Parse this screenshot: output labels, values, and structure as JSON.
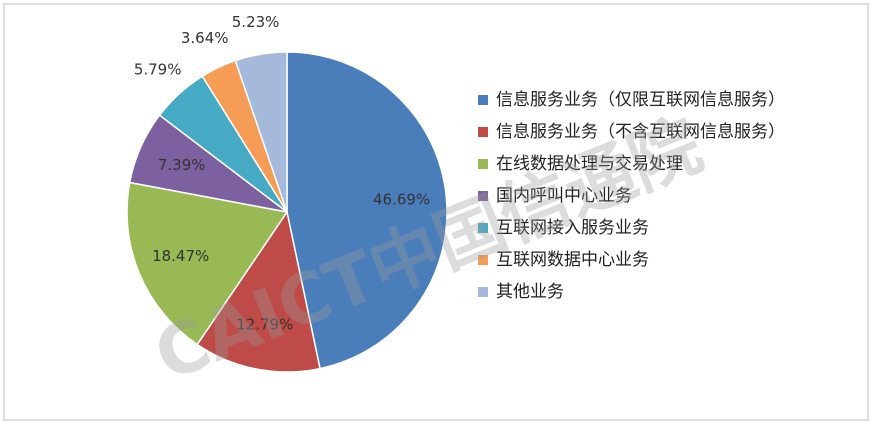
{
  "chart_data": {
    "type": "pie",
    "categories": [
      "信息服务业务（仅限互联网信息服务）",
      "信息服务业务（不含互联网信息服务）",
      "在线数据处理与交易处理",
      "国内呼叫中心业务",
      "互联网接入服务业务",
      "互联网数据中心业务",
      "其他业务"
    ],
    "values": [
      46.69,
      12.79,
      18.47,
      7.39,
      5.79,
      3.64,
      5.23
    ],
    "value_labels": [
      "46.69%",
      "12.79%",
      "18.47%",
      "7.39%",
      "5.79%",
      "3.64%",
      "5.23%"
    ],
    "colors": [
      "#4a7ebb",
      "#be4b48",
      "#98b954",
      "#7d60a0",
      "#46aac5",
      "#f59d56",
      "#a5b9db"
    ],
    "legend": "right",
    "watermark": "CAICT中国信通院"
  }
}
